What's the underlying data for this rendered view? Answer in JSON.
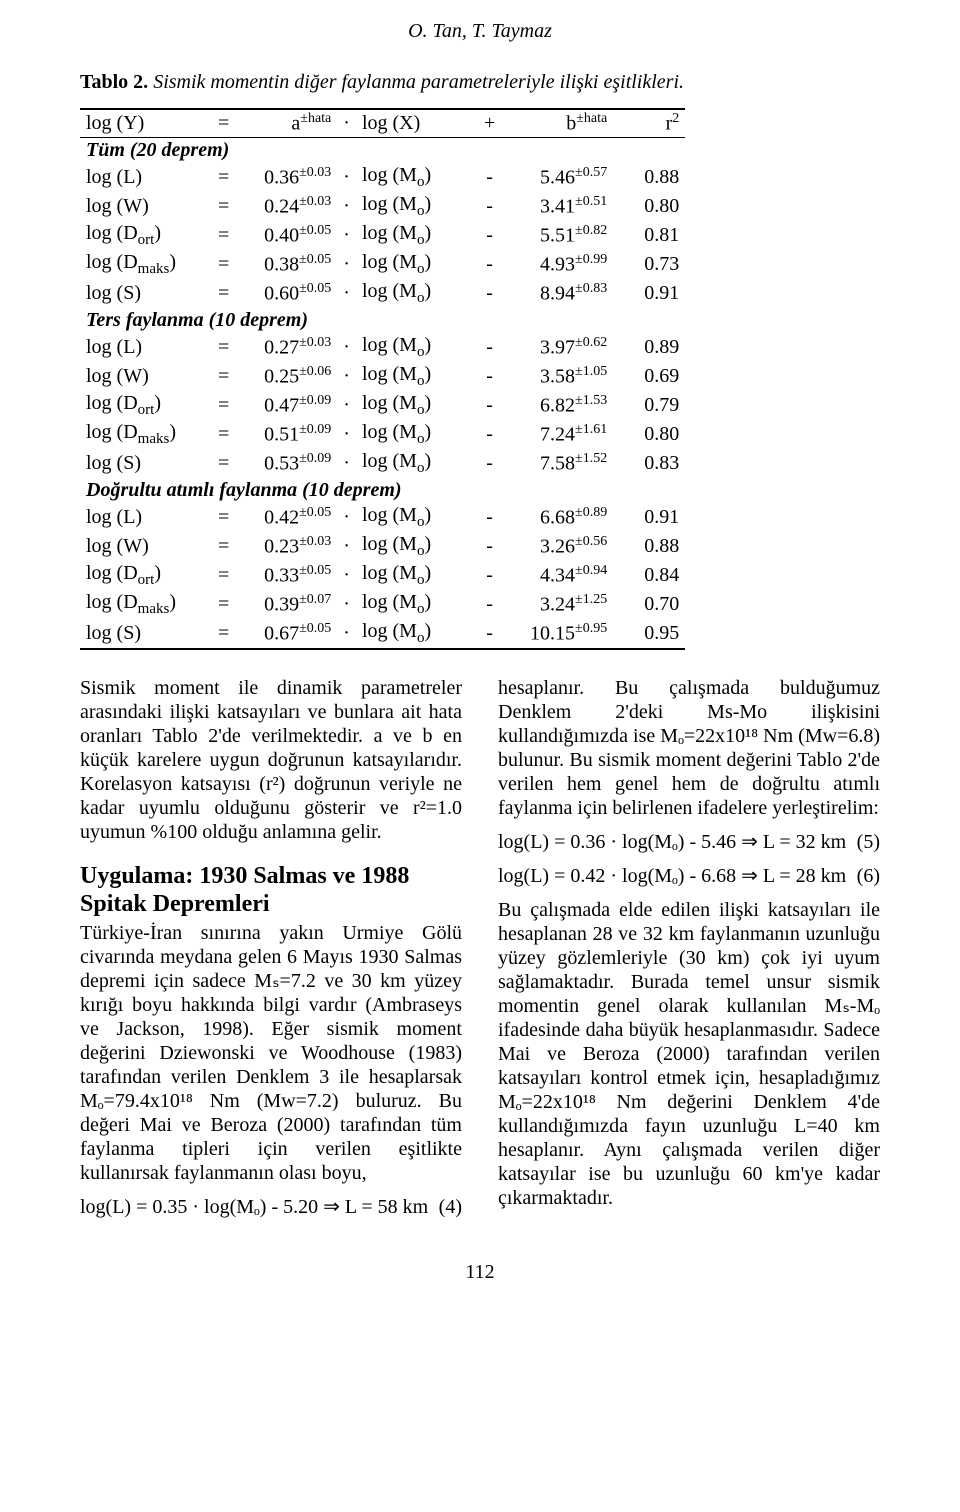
{
  "header": "O. Tan, T. Taymaz",
  "caption_bold": "Tablo 2.",
  "caption_rest": " Sismik momentin diğer faylanma parametreleriyle ilişki eşitlikleri.",
  "table_header": {
    "y": "log (Y)",
    "eq": "=",
    "a": "a",
    "a_sup": "±hata",
    "dot": "·",
    "x": "log (X)",
    "plus": "+",
    "b": "b",
    "b_sup": "±hata",
    "r2": "r",
    "r2_sup": "2"
  },
  "groups": [
    {
      "title": "Tüm (20 deprem)",
      "rows": [
        {
          "y": "log (L)",
          "a": "0.36",
          "ae": "±0.03",
          "x": "log (M",
          "xo": "o",
          "xo2": ")",
          "b": "5.46",
          "be": "±0.57",
          "r": "0.88"
        },
        {
          "y": "log (W)",
          "a": "0.24",
          "ae": "±0.03",
          "x": "log (M",
          "xo": "o",
          "xo2": ")",
          "b": "3.41",
          "be": "±0.51",
          "r": "0.80"
        },
        {
          "y": "log (D",
          "ys": "ort",
          "y2": ")",
          "a": "0.40",
          "ae": "±0.05",
          "x": "log (M",
          "xo": "o",
          "xo2": ")",
          "b": "5.51",
          "be": "±0.82",
          "r": "0.81"
        },
        {
          "y": "log (D",
          "ys": "maks",
          "y2": ")",
          "a": "0.38",
          "ae": "±0.05",
          "x": "log (M",
          "xo": "o",
          "xo2": ")",
          "b": "4.93",
          "be": "±0.99",
          "r": "0.73"
        },
        {
          "y": "log (S)",
          "a": "0.60",
          "ae": "±0.05",
          "x": "log (M",
          "xo": "o",
          "xo2": ")",
          "b": "8.94",
          "be": "±0.83",
          "r": "0.91"
        }
      ]
    },
    {
      "title": "Ters faylanma (10 deprem)",
      "rows": [
        {
          "y": "log (L)",
          "a": "0.27",
          "ae": "±0.03",
          "x": "log (M",
          "xo": "o",
          "xo2": ")",
          "b": "3.97",
          "be": "±0.62",
          "r": "0.89"
        },
        {
          "y": "log (W)",
          "a": "0.25",
          "ae": "±0.06",
          "x": "log (M",
          "xo": "o",
          "xo2": ")",
          "b": "3.58",
          "be": "±1.05",
          "r": "0.69"
        },
        {
          "y": "log (D",
          "ys": "ort",
          "y2": ")",
          "a": "0.47",
          "ae": "±0.09",
          "x": "log (M",
          "xo": "o",
          "xo2": ")",
          "b": "6.82",
          "be": "±1.53",
          "r": "0.79"
        },
        {
          "y": "log (D",
          "ys": "maks",
          "y2": ")",
          "a": "0.51",
          "ae": "±0.09",
          "x": "log (M",
          "xo": "o",
          "xo2": ")",
          "b": "7.24",
          "be": "±1.61",
          "r": "0.80"
        },
        {
          "y": "log (S)",
          "a": "0.53",
          "ae": "±0.09",
          "x": "log (M",
          "xo": "o",
          "xo2": ")",
          "b": "7.58",
          "be": "±1.52",
          "r": "0.83"
        }
      ]
    },
    {
      "title": "Doğrultu atımlı faylanma (10 deprem)",
      "rows": [
        {
          "y": "log (L)",
          "a": "0.42",
          "ae": "±0.05",
          "x": "log (M",
          "xo": "o",
          "xo2": ")",
          "b": "6.68",
          "be": "±0.89",
          "r": "0.91"
        },
        {
          "y": "log (W)",
          "a": "0.23",
          "ae": "±0.03",
          "x": "log (M",
          "xo": "o",
          "xo2": ")",
          "b": "3.26",
          "be": "±0.56",
          "r": "0.88"
        },
        {
          "y": "log (D",
          "ys": "ort",
          "y2": ")",
          "a": "0.33",
          "ae": "±0.05",
          "x": "log (M",
          "xo": "o",
          "xo2": ")",
          "b": "4.34",
          "be": "±0.94",
          "r": "0.84"
        },
        {
          "y": "log (D",
          "ys": "maks",
          "y2": ")",
          "a": "0.39",
          "ae": "±0.07",
          "x": "log (M",
          "xo": "o",
          "xo2": ")",
          "b": "3.24",
          "be": "±1.25",
          "r": "0.70"
        },
        {
          "y": "log (S)",
          "a": "0.67",
          "ae": "±0.05",
          "x": "log (M",
          "xo": "o",
          "xo2": ")",
          "b": "10.15",
          "be": "±0.95",
          "r": "0.95"
        }
      ]
    }
  ],
  "left_para": "Sismik moment ile dinamik parametreler arasındaki ilişki katsayıları ve bunlara ait hata oranları Tablo 2'de verilmektedir. a ve b en küçük karelere uygun doğrunun katsayılarıdır. Korelasyon katsayısı (r²) doğrunun veriyle ne kadar uyumlu olduğunu gösterir ve r²=1.0 uyumun %100 olduğu anlamına gelir.",
  "section_title": "Uygulama: 1930 Salmas ve 1988 Spitak Depremleri",
  "left_para2": "Türkiye-İran sınırına yakın Urmiye Gölü civarında meydana gelen 6 Mayıs 1930 Salmas depremi için sadece Mₛ=7.2 ve 30 km yüzey kırığı boyu hakkında bilgi vardır (Ambraseys ve Jackson, 1998). Eğer sismik moment değerini Dziewonski ve Woodhouse (1983) tarafından verilen Denklem 3 ile hesaplarsak Mₒ=79.4x10¹⁸ Nm (Mw=7.2) buluruz. Bu değeri Mai ve Beroza (2000) tarafından tüm faylanma tipleri için verilen eşitlikte kullanırsak faylanmanın olası boyu,",
  "eq4_lhs": "log(L) = 0.35 · log(Mₒ) - 5.20  ⇒  L = 58 km",
  "eq4_no": "(4)",
  "right_para1": "hesaplanır. Bu çalışmada bulduğumuz Denklem 2'deki Ms-Mo ilişkisini kullandığımızda ise Mₒ=22x10¹⁸ Nm (Mw=6.8) bulunur. Bu sismik moment değerini Tablo 2'de verilen hem genel hem de doğrultu atımlı faylanma için belirlenen ifadelere yerleştirelim:",
  "eq5_lhs": "log(L) = 0.36 · log(Mₒ) - 5.46 ⇒ L = 32 km",
  "eq5_no": "(5)",
  "eq6_lhs": "log(L) = 0.42 · log(Mₒ) - 6.68 ⇒ L = 28 km",
  "eq6_no": "(6)",
  "right_para2": "Bu çalışmada elde edilen ilişki katsayıları ile hesaplanan 28 ve 32 km faylanmanın uzunluğu yüzey gözlemleriyle (30 km) çok iyi uyum sağlamaktadır. Burada temel unsur sismik momentin genel olarak kullanılan Mₛ-Mₒ ifadesinde daha büyük hesaplanmasıdır. Sadece Mai ve Beroza (2000) tarafından verilen katsayıları kontrol etmek için, hesapladığımız Mₒ=22x10¹⁸ Nm değerini Denklem 4'de kullandığımızda fayın uzunluğu L=40 km hesaplanır. Aynı çalışmada verilen diğer katsayılar ise bu uzunluğu 60 km'ye kadar çıkarmaktadır.",
  "pagenum": "112"
}
